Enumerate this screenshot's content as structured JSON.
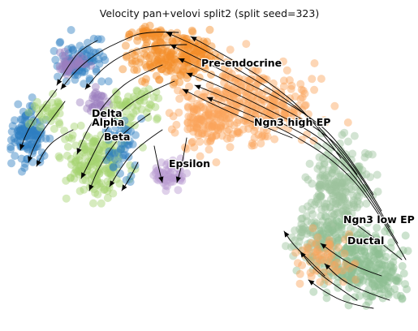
{
  "chart_data": {
    "type": "scatter",
    "title": "Velocity pan+velovi split2 (split seed=323)",
    "xlabel": "",
    "ylabel": "",
    "grid": false,
    "axes_visible": false,
    "overlay": "velocity streamlines with arrowheads",
    "xlim": [
      0,
      100
    ],
    "ylim": [
      0,
      100
    ],
    "point_alpha": 0.45,
    "clusters": [
      {
        "name": "Pre-endocrine",
        "color": "#f58f2a",
        "label_pos": [
          48,
          85
        ]
      },
      {
        "name": "Delta",
        "color": "#9b7fbf",
        "label_pos": [
          21,
          68
        ]
      },
      {
        "name": "Alpha",
        "color": "#2e7fc0",
        "label_pos": [
          21,
          65
        ]
      },
      {
        "name": "Beta",
        "color": "#a4d36f",
        "label_pos": [
          24,
          60
        ]
      },
      {
        "name": "Ngn3 high EP",
        "color": "#fba45a",
        "label_pos": [
          61,
          65
        ]
      },
      {
        "name": "Epsilon",
        "color": "#b89ad0",
        "label_pos": [
          40,
          51
        ]
      },
      {
        "name": "Ngn3 low EP",
        "color": "#9ec49d",
        "label_pos": [
          83,
          32
        ]
      },
      {
        "name": "Ductal",
        "color": "#8fbf93",
        "label_pos": [
          84,
          25
        ]
      }
    ]
  }
}
